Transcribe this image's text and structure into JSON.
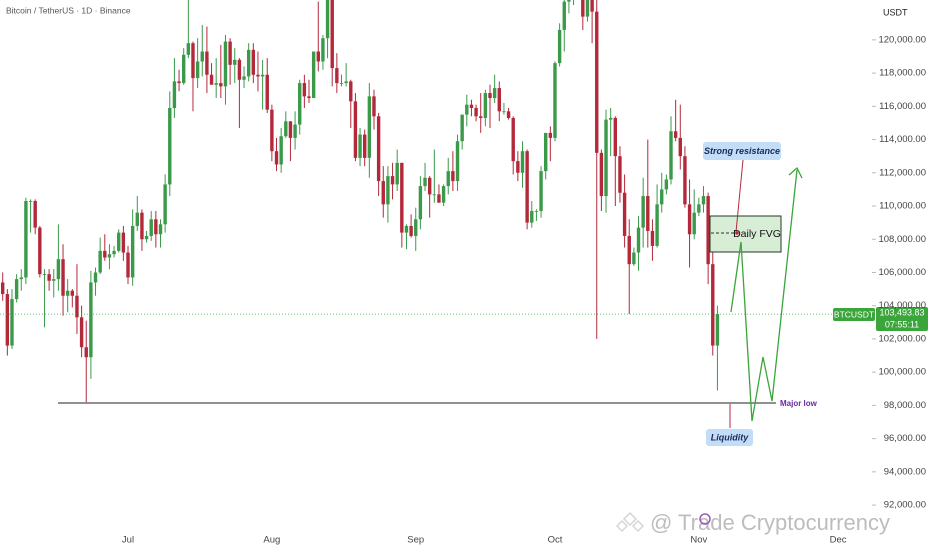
{
  "chart_data": {
    "type": "candlestick",
    "title": "Bitcoin / TetherUS · 1D · Binance",
    "currency": "USDT",
    "categories": [
      null,
      null,
      null,
      null,
      null,
      null,
      null,
      null,
      null,
      null,
      null,
      null,
      null,
      null,
      null,
      null,
      null,
      null,
      null,
      null,
      null,
      null,
      null,
      null,
      null,
      null,
      null,
      "Jul",
      null,
      null,
      null,
      null,
      null,
      null,
      null,
      null,
      null,
      null,
      null,
      null,
      null,
      null,
      null,
      null,
      null,
      null,
      null,
      null,
      null,
      null,
      null,
      null,
      null,
      null,
      null,
      null,
      null,
      null,
      "Aug",
      null,
      null,
      null,
      null,
      null,
      null,
      null,
      null,
      null,
      null,
      null,
      null,
      null,
      null,
      null,
      null,
      null,
      null,
      null,
      null,
      null,
      null,
      null,
      null,
      null,
      null,
      null,
      null,
      null,
      null,
      "Sep",
      null,
      null,
      null,
      null,
      null,
      null,
      null,
      null,
      null,
      null,
      null,
      null,
      null,
      null,
      null,
      null,
      null,
      null,
      null,
      null,
      null,
      null,
      null,
      null,
      null,
      null,
      null,
      null,
      null,
      "Oct",
      null,
      null,
      null,
      null,
      null,
      null,
      null,
      null,
      null,
      null,
      null,
      null,
      null,
      null,
      null,
      null,
      null,
      null,
      null,
      null,
      null,
      null,
      null,
      null,
      null,
      null,
      null,
      null,
      null,
      null,
      "Nov",
      null,
      null,
      null,
      null,
      null,
      null,
      null,
      null,
      null,
      null,
      null,
      null,
      null,
      null,
      null,
      null,
      null,
      null,
      null,
      null,
      null,
      null,
      null,
      null,
      null,
      null,
      null,
      null,
      null,
      "Dec"
    ],
    "ohlc": [
      [
        105400,
        106000,
        104300,
        104700
      ],
      [
        104700,
        105000,
        101000,
        101600
      ],
      [
        101600,
        105000,
        101400,
        104400
      ],
      [
        104400,
        105900,
        104200,
        105600
      ],
      [
        105600,
        106200,
        104900,
        105700
      ],
      [
        105700,
        110500,
        105300,
        110300
      ],
      [
        110300,
        110400,
        108400,
        110300
      ],
      [
        110300,
        110400,
        108300,
        108700
      ],
      [
        108700,
        108800,
        105700,
        105900
      ],
      [
        105900,
        106200,
        102700,
        105900
      ],
      [
        105900,
        106200,
        104900,
        105500
      ],
      [
        105500,
        106200,
        104500,
        105600
      ],
      [
        105600,
        108900,
        104900,
        106800
      ],
      [
        106800,
        107700,
        103400,
        104600
      ],
      [
        104600,
        105600,
        103600,
        104900
      ],
      [
        104900,
        105000,
        103900,
        104600
      ],
      [
        104600,
        106500,
        102300,
        103300
      ],
      [
        103300,
        104000,
        100900,
        101500
      ],
      [
        101500,
        103100,
        98200,
        100900
      ],
      [
        100900,
        106100,
        99600,
        105400
      ],
      [
        105400,
        106300,
        104600,
        106000
      ],
      [
        106000,
        108100,
        105900,
        107300
      ],
      [
        107300,
        108300,
        106700,
        106900
      ],
      [
        106900,
        107700,
        106200,
        107100
      ],
      [
        107100,
        107600,
        106900,
        107300
      ],
      [
        107300,
        108600,
        107200,
        108400
      ],
      [
        108400,
        108800,
        106700,
        107200
      ],
      [
        107200,
        107600,
        105300,
        105700
      ],
      [
        105700,
        109800,
        105200,
        108800
      ],
      [
        108800,
        110600,
        108500,
        109600
      ],
      [
        109600,
        109800,
        107300,
        108000
      ],
      [
        108000,
        108500,
        107800,
        108200
      ],
      [
        108200,
        109700,
        107900,
        109200
      ],
      [
        109200,
        109700,
        107500,
        108300
      ],
      [
        108300,
        109200,
        107500,
        108900
      ],
      [
        108900,
        111900,
        108400,
        111300
      ],
      [
        111300,
        116900,
        110600,
        115900
      ],
      [
        115900,
        118900,
        115300,
        117500
      ],
      [
        117500,
        118200,
        116900,
        117400
      ],
      [
        117400,
        119500,
        117300,
        119100
      ],
      [
        119100,
        123200,
        118900,
        119800
      ],
      [
        119800,
        119900,
        115700,
        117700
      ],
      [
        117700,
        120100,
        117100,
        118700
      ],
      [
        118700,
        120900,
        117800,
        119300
      ],
      [
        119300,
        120800,
        116800,
        117900
      ],
      [
        117900,
        118600,
        117300,
        117300
      ],
      [
        117300,
        118900,
        116500,
        117400
      ],
      [
        117400,
        119700,
        116500,
        117200
      ],
      [
        117200,
        120300,
        116100,
        119900
      ],
      [
        119900,
        120100,
        117300,
        118500
      ],
      [
        118500,
        119500,
        117400,
        118800
      ],
      [
        118800,
        118900,
        114700,
        117600
      ],
      [
        117600,
        118400,
        117100,
        117800
      ],
      [
        117800,
        119800,
        117500,
        119400
      ],
      [
        119400,
        119800,
        117400,
        117900
      ],
      [
        117900,
        119300,
        116900,
        117800
      ],
      [
        117800,
        118800,
        115800,
        117900
      ],
      [
        117900,
        118900,
        115600,
        115800
      ],
      [
        115800,
        116100,
        112700,
        113300
      ],
      [
        113300,
        114100,
        112100,
        112500
      ],
      [
        112500,
        114700,
        112000,
        114200
      ],
      [
        114200,
        115700,
        114100,
        115100
      ],
      [
        115100,
        115100,
        112700,
        114100
      ],
      [
        114100,
        115700,
        113400,
        114900
      ],
      [
        114900,
        117600,
        114300,
        117400
      ],
      [
        117400,
        117900,
        115900,
        116600
      ],
      [
        116600,
        117600,
        116200,
        116500
      ],
      [
        116500,
        119300,
        116500,
        119300
      ],
      [
        119300,
        122300,
        118100,
        118700
      ],
      [
        118700,
        120300,
        118200,
        120100
      ],
      [
        120100,
        123700,
        118900,
        123300
      ],
      [
        123300,
        124500,
        117200,
        118300
      ],
      [
        118300,
        119200,
        116800,
        117400
      ],
      [
        117400,
        117900,
        117200,
        117400
      ],
      [
        117400,
        118600,
        117200,
        117500
      ],
      [
        117500,
        117600,
        114700,
        116300
      ],
      [
        116300,
        116800,
        112700,
        112900
      ],
      [
        112900,
        114700,
        112400,
        114300
      ],
      [
        114300,
        114600,
        112400,
        112900
      ],
      [
        112900,
        117400,
        111700,
        116600
      ],
      [
        116600,
        117000,
        114600,
        115400
      ],
      [
        115400,
        115600,
        110600,
        111500
      ],
      [
        111500,
        112400,
        109300,
        110100
      ],
      [
        110100,
        112400,
        109000,
        111800
      ],
      [
        111800,
        112600,
        110400,
        111300
      ],
      [
        111300,
        113400,
        110900,
        112600
      ],
      [
        112600,
        112600,
        107500,
        108400
      ],
      [
        108400,
        108900,
        107400,
        108800
      ],
      [
        108800,
        109500,
        108100,
        108200
      ],
      [
        108200,
        109900,
        107300,
        109200
      ],
      [
        109200,
        111800,
        108600,
        111200
      ],
      [
        111200,
        112600,
        110900,
        111700
      ],
      [
        111700,
        111800,
        109300,
        110700
      ],
      [
        110700,
        113400,
        110200,
        110700
      ],
      [
        110700,
        111300,
        110200,
        110200
      ],
      [
        110200,
        111300,
        110000,
        111200
      ],
      [
        111200,
        112900,
        110700,
        112100
      ],
      [
        112100,
        113300,
        110900,
        111500
      ],
      [
        111500,
        114300,
        110900,
        113900
      ],
      [
        113900,
        115500,
        113400,
        115500
      ],
      [
        115500,
        116700,
        114800,
        116100
      ],
      [
        116100,
        116400,
        115400,
        115900
      ],
      [
        115900,
        116100,
        115100,
        115400
      ],
      [
        115400,
        116800,
        114400,
        115300
      ],
      [
        115300,
        117000,
        114800,
        116800
      ],
      [
        116800,
        117300,
        114700,
        116500
      ],
      [
        116500,
        117900,
        116200,
        117100
      ],
      [
        117100,
        117500,
        115100,
        115700
      ],
      [
        115700,
        116200,
        115500,
        115700
      ],
      [
        115700,
        115900,
        115200,
        115300
      ],
      [
        115300,
        115400,
        111900,
        112700
      ],
      [
        112700,
        113300,
        111500,
        112000
      ],
      [
        112000,
        113900,
        111100,
        113300
      ],
      [
        113300,
        113400,
        108600,
        109000
      ],
      [
        109000,
        110300,
        108700,
        109700
      ],
      [
        109700,
        109800,
        109100,
        109700
      ],
      [
        109700,
        112400,
        109300,
        112100
      ],
      [
        112100,
        114400,
        111600,
        114400
      ],
      [
        114400,
        114800,
        112700,
        114100
      ],
      [
        114100,
        118700,
        113900,
        118600
      ],
      [
        118600,
        121000,
        118400,
        120600
      ],
      [
        120600,
        123900,
        119300,
        122300
      ],
      [
        122300,
        122900,
        121600,
        122400
      ],
      [
        122400,
        125700,
        122100,
        123500
      ],
      [
        123500,
        126200,
        123100,
        124700
      ],
      [
        124700,
        125100,
        120600,
        121400
      ],
      [
        121400,
        124200,
        121100,
        123300
      ],
      [
        123300,
        123800,
        119800,
        121700
      ],
      [
        121700,
        122500,
        102000,
        113200
      ],
      [
        113200,
        113400,
        109700,
        110600
      ],
      [
        110600,
        115800,
        109600,
        115200
      ],
      [
        115200,
        115900,
        113000,
        115300
      ],
      [
        115300,
        115400,
        110000,
        113000
      ],
      [
        113000,
        113600,
        110200,
        110800
      ],
      [
        110800,
        111900,
        107500,
        108200
      ],
      [
        108200,
        109200,
        103500,
        106500
      ],
      [
        106500,
        107500,
        106400,
        107200
      ],
      [
        107200,
        109400,
        106100,
        108700
      ],
      [
        108700,
        111700,
        107500,
        110600
      ],
      [
        110600,
        114000,
        107500,
        108500
      ],
      [
        108500,
        109200,
        106700,
        107600
      ],
      [
        107600,
        111300,
        107500,
        110100
      ],
      [
        110100,
        112000,
        109600,
        111000
      ],
      [
        111000,
        111900,
        110700,
        111600
      ],
      [
        111600,
        115400,
        111300,
        114500
      ],
      [
        114500,
        116400,
        113900,
        114100
      ],
      [
        114100,
        116100,
        112200,
        113000
      ],
      [
        113000,
        113600,
        109900,
        110100
      ],
      [
        110100,
        111600,
        106300,
        108300
      ],
      [
        108300,
        111000,
        108000,
        109600
      ],
      [
        109600,
        110500,
        109400,
        110100
      ],
      [
        110100,
        111200,
        109600,
        110600
      ],
      [
        110600,
        110800,
        105300,
        106500
      ],
      [
        106500,
        107200,
        101000,
        101600
      ],
      [
        101600,
        104000,
        98900,
        103500
      ],
      null,
      null,
      null,
      null,
      null,
      null,
      null,
      null,
      null,
      null,
      null,
      null,
      null,
      null,
      null,
      null,
      null,
      null,
      null,
      null,
      null,
      null,
      null,
      null,
      null,
      null
    ],
    "up_color": "#3a9a4a",
    "down_color": "#b3283b",
    "ylim": [
      90500,
      122400
    ],
    "yticks": [
      {
        "value": 92000,
        "label": "92,000.00"
      },
      {
        "value": 94000,
        "label": "94,000.00"
      },
      {
        "value": 96000,
        "label": "96,000.00"
      },
      {
        "value": 98000,
        "label": "98,000.00"
      },
      {
        "value": 100000,
        "label": "100,000.00"
      },
      {
        "value": 102000,
        "label": "102,000.00"
      },
      {
        "value": 104000,
        "label": "104,000.00"
      },
      {
        "value": 106000,
        "label": "106,000.00"
      },
      {
        "value": 108000,
        "label": "108,000.00"
      },
      {
        "value": 110000,
        "label": "110,000.00"
      },
      {
        "value": 112000,
        "label": "112,000.00"
      },
      {
        "value": 114000,
        "label": "114,000.00"
      },
      {
        "value": 116000,
        "label": "116,000.00"
      },
      {
        "value": 118000,
        "label": "118,000.00"
      },
      {
        "value": 120000,
        "label": "120,000.00"
      }
    ],
    "symbol": "BTCUSDT",
    "last_price": {
      "value": 103493.83,
      "label": "103,493.83"
    },
    "countdown": "07:55:11",
    "annotations": [
      "Strong resistance",
      "Daily FVG",
      "Major low",
      "Liquidity"
    ],
    "watermark": "@ Trade Cryptocurrency"
  }
}
